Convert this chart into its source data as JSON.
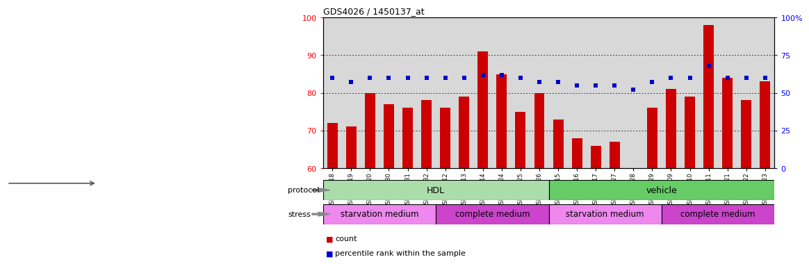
{
  "title": "GDS4026 / 1450137_at",
  "samples": [
    "GSM440318",
    "GSM440319",
    "GSM440320",
    "GSM440330",
    "GSM440331",
    "GSM440332",
    "GSM440312",
    "GSM440313",
    "GSM440314",
    "GSM440324",
    "GSM440325",
    "GSM440326",
    "GSM440315",
    "GSM440316",
    "GSM440317",
    "GSM440327",
    "GSM440328",
    "GSM440329",
    "GSM440309",
    "GSM440310",
    "GSM440311",
    "GSM440321",
    "GSM440322",
    "GSM440323"
  ],
  "bar_heights": [
    72,
    71,
    80,
    77,
    76,
    78,
    76,
    79,
    91,
    85,
    75,
    80,
    73,
    68,
    66,
    67,
    60,
    76,
    81,
    79,
    98,
    84,
    78,
    83
  ],
  "dot_values_pct": [
    60,
    57,
    60,
    60,
    60,
    60,
    60,
    60,
    62,
    62,
    60,
    57,
    57,
    55,
    55,
    55,
    52,
    57,
    60,
    60,
    68,
    60,
    60,
    60
  ],
  "ylim": [
    60,
    100
  ],
  "y2lim": [
    0,
    100
  ],
  "yticks_left": [
    60,
    70,
    80,
    90,
    100
  ],
  "yticks_right": [
    0,
    25,
    50,
    75,
    100
  ],
  "y2ticklabels": [
    "0",
    "25",
    "50",
    "75",
    "100%"
  ],
  "bar_color": "#cc0000",
  "dot_color": "#0000cc",
  "bg_color": "#d8d8d8",
  "protocol_groups": [
    {
      "label": "HDL",
      "start": 0,
      "end": 12,
      "color": "#aaddaa"
    },
    {
      "label": "vehicle",
      "start": 12,
      "end": 24,
      "color": "#66cc66"
    }
  ],
  "stress_groups": [
    {
      "label": "starvation medium",
      "start": 0,
      "end": 6,
      "color": "#ee88ee"
    },
    {
      "label": "complete medium",
      "start": 6,
      "end": 12,
      "color": "#cc44cc"
    },
    {
      "label": "starvation medium",
      "start": 12,
      "end": 18,
      "color": "#ee88ee"
    },
    {
      "label": "complete medium",
      "start": 18,
      "end": 24,
      "color": "#cc44cc"
    }
  ],
  "legend_count_color": "#cc0000",
  "legend_dot_color": "#0000cc",
  "protocol_label": "protocol",
  "stress_label": "stress",
  "legend_count_text": "count",
  "legend_pct_text": "percentile rank within the sample"
}
